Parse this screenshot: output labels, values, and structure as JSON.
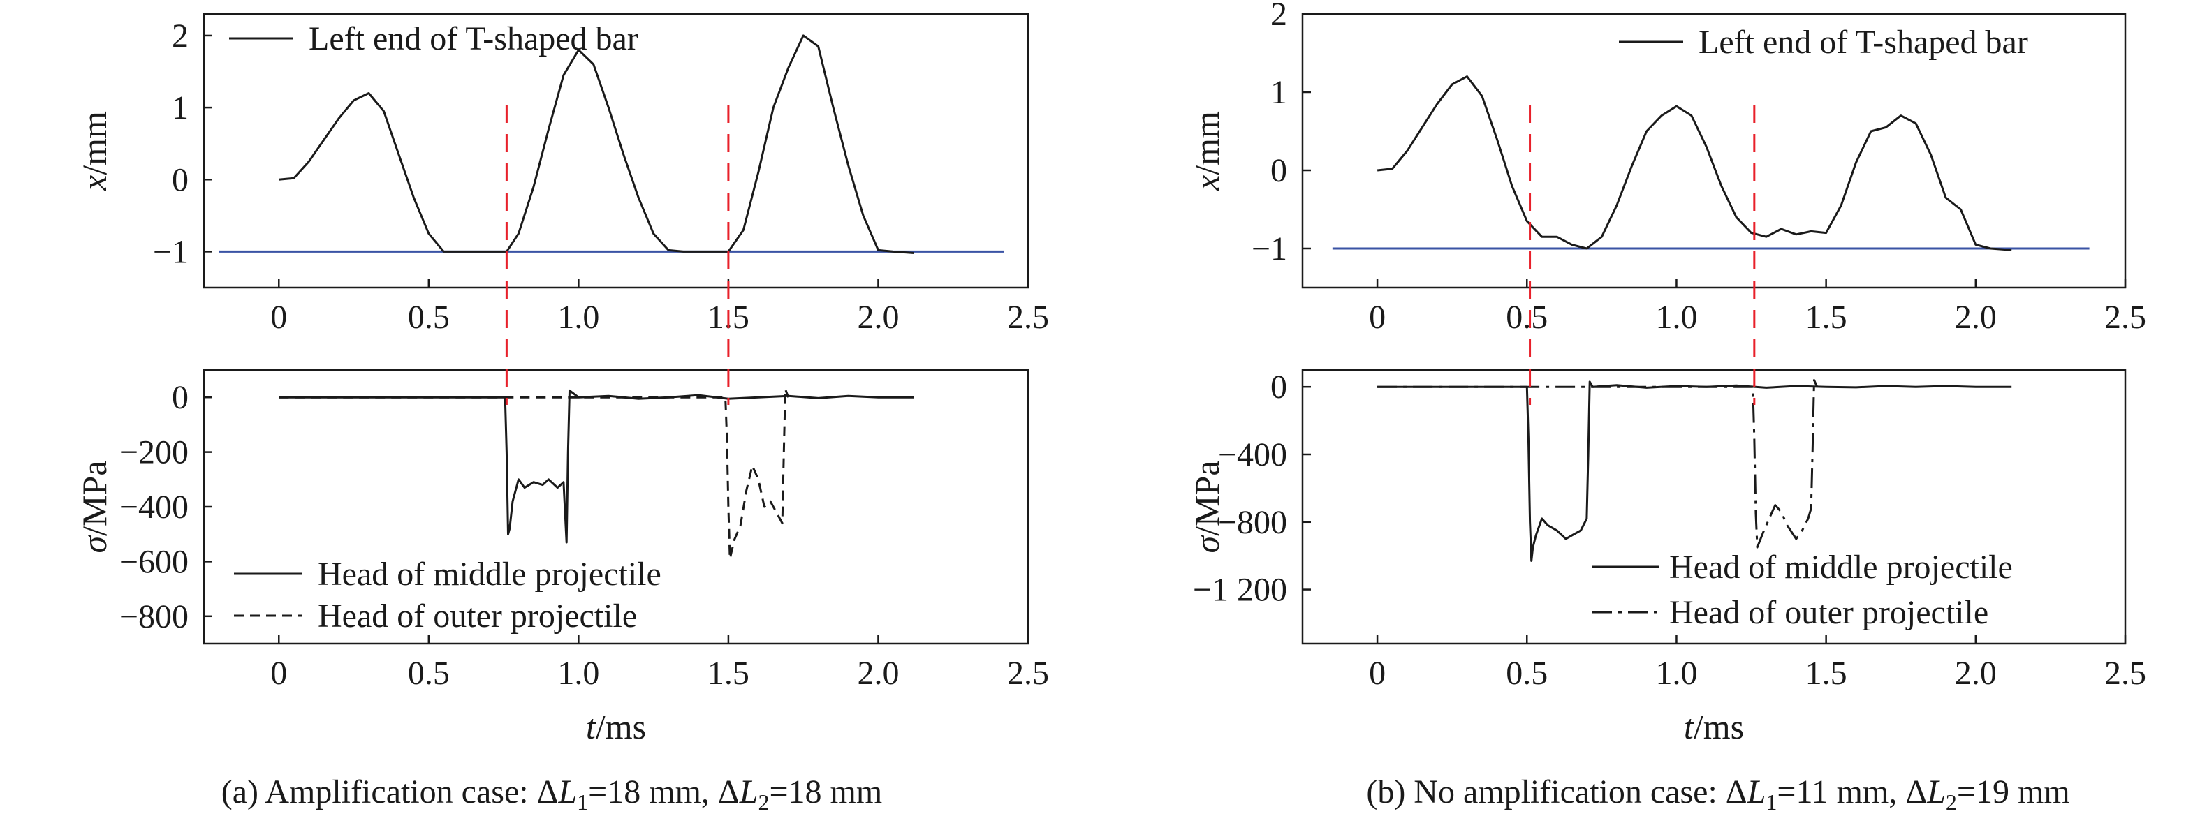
{
  "chart_data": [
    {
      "panel": "a",
      "caption": "(a) Amplification case: ΔL1=18 mm, ΔL2=18 mm",
      "caption_parts": {
        "lead": "(a) Amplification case: Δ",
        "v1": "L",
        "s1": "1",
        "m1": "=18 mm, Δ",
        "v2": "L",
        "s2": "2",
        "m2": "=18 mm"
      },
      "xlabel": "t/ms",
      "xlim": [
        -0.25,
        2.5
      ],
      "xticks": [
        0,
        0.5,
        1.0,
        1.5,
        2.0,
        2.5
      ],
      "xtick_labels": [
        "0",
        "0.5",
        "1.0",
        "1.5",
        "2.0",
        "2.5"
      ],
      "dashed_red_lines_x": [
        0.76,
        1.5
      ],
      "line_color_red": "#e8202a",
      "top": {
        "type": "line",
        "ylabel": "x/mm",
        "ylim": [
          -1.5,
          2.3
        ],
        "yticks": [
          -1,
          0,
          1,
          2
        ],
        "ytick_labels": [
          "−1",
          "0",
          "1",
          "2"
        ],
        "legend": [
          "Left end of T-shaped bar"
        ],
        "legend_position": "top-left",
        "reference_line": {
          "y": -1,
          "x": [
            -0.2,
            2.42
          ],
          "color": "#3a53a4"
        },
        "series": [
          {
            "name": "Left end of T-shaped bar",
            "style": "solid",
            "x": [
              0,
              0.05,
              0.1,
              0.15,
              0.2,
              0.25,
              0.3,
              0.35,
              0.4,
              0.45,
              0.5,
              0.55,
              0.6,
              0.65,
              0.7,
              0.76,
              0.8,
              0.85,
              0.9,
              0.95,
              1.0,
              1.05,
              1.1,
              1.15,
              1.2,
              1.25,
              1.3,
              1.35,
              1.4,
              1.45,
              1.5,
              1.55,
              1.6,
              1.65,
              1.7,
              1.75,
              1.8,
              1.85,
              1.9,
              1.95,
              2.0,
              2.05,
              2.12
            ],
            "y": [
              0,
              0.02,
              0.25,
              0.55,
              0.85,
              1.1,
              1.2,
              0.95,
              0.35,
              -0.25,
              -0.75,
              -1.0,
              -1.0,
              -1.0,
              -1.0,
              -1.0,
              -0.75,
              -0.1,
              0.7,
              1.45,
              1.8,
              1.6,
              1.0,
              0.35,
              -0.25,
              -0.75,
              -0.98,
              -1.0,
              -1.0,
              -1.0,
              -1.0,
              -0.7,
              0.1,
              1.0,
              1.55,
              2.0,
              1.85,
              1.0,
              0.2,
              -0.5,
              -0.98,
              -1.0,
              -1.02
            ]
          }
        ]
      },
      "bottom": {
        "type": "line",
        "ylabel": "σ/MPa",
        "ylim": [
          -900,
          100
        ],
        "yticks": [
          0,
          -200,
          -400,
          -600,
          -800
        ],
        "ytick_labels": [
          "0",
          "−200",
          "−400",
          "−600",
          "−800"
        ],
        "legend": [
          "Head of middle projectile",
          "Head of outer projectile"
        ],
        "legend_position": "bottom-left",
        "series": [
          {
            "name": "Head of middle projectile",
            "style": "solid",
            "x": [
              0,
              0.74,
              0.755,
              0.76,
              0.765,
              0.77,
              0.78,
              0.8,
              0.82,
              0.85,
              0.88,
              0.9,
              0.93,
              0.95,
              0.96,
              0.965,
              0.97,
              1.0,
              1.1,
              1.2,
              1.3,
              1.4,
              1.5,
              1.6,
              1.7,
              1.8,
              1.9,
              2.0,
              2.12
            ],
            "y": [
              0,
              0,
              0,
              -200,
              -500,
              -480,
              -380,
              -300,
              -330,
              -310,
              -320,
              -300,
              -330,
              -310,
              -530,
              -200,
              25,
              0,
              5,
              -5,
              0,
              8,
              -5,
              0,
              5,
              -3,
              5,
              0,
              0
            ]
          },
          {
            "name": "Head of outer projectile",
            "style": "dashed",
            "x": [
              0,
              1.49,
              1.495,
              1.5,
              1.505,
              1.52,
              1.54,
              1.56,
              1.58,
              1.6,
              1.62,
              1.64,
              1.66,
              1.68,
              1.685,
              1.69,
              1.7
            ],
            "y": [
              0,
              0,
              -150,
              -400,
              -590,
              -520,
              -470,
              -340,
              -250,
              -300,
              -400,
              -380,
              -420,
              -460,
              -200,
              30,
              0
            ]
          }
        ]
      }
    },
    {
      "panel": "b",
      "caption": "(b) No amplification case: ΔL1=11 mm, ΔL2=19 mm",
      "caption_parts": {
        "lead": "(b) No amplification case: Δ",
        "v1": "L",
        "s1": "1",
        "m1": "=11 mm, Δ",
        "v2": "L",
        "s2": "2",
        "m2": "=19 mm"
      },
      "xlabel": "t/ms",
      "xlim": [
        -0.25,
        2.5
      ],
      "xticks": [
        0,
        0.5,
        1.0,
        1.5,
        2.0,
        2.5
      ],
      "xtick_labels": [
        "0",
        "0.5",
        "1.0",
        "1.5",
        "2.0",
        "2.5"
      ],
      "dashed_red_lines_x": [
        0.51,
        1.26
      ],
      "line_color_red": "#e8202a",
      "top": {
        "type": "line",
        "ylabel": "x/mm",
        "ylim": [
          -1.5,
          2.0
        ],
        "yticks": [
          -1,
          0,
          1,
          2
        ],
        "ytick_labels": [
          "−1",
          "0",
          "1",
          "2"
        ],
        "legend": [
          "Left end of T-shaped bar"
        ],
        "legend_position": "top-right",
        "reference_line": {
          "y": -1,
          "x": [
            -0.15,
            2.38
          ],
          "color": "#3a53a4"
        },
        "series": [
          {
            "name": "Left end of T-shaped bar",
            "style": "solid",
            "x": [
              0,
              0.05,
              0.1,
              0.15,
              0.2,
              0.25,
              0.3,
              0.35,
              0.4,
              0.45,
              0.5,
              0.55,
              0.6,
              0.65,
              0.7,
              0.75,
              0.8,
              0.85,
              0.9,
              0.95,
              1.0,
              1.05,
              1.1,
              1.15,
              1.2,
              1.25,
              1.3,
              1.35,
              1.4,
              1.45,
              1.5,
              1.55,
              1.6,
              1.65,
              1.7,
              1.75,
              1.8,
              1.85,
              1.9,
              1.95,
              2.0,
              2.05,
              2.12
            ],
            "y": [
              0,
              0.02,
              0.25,
              0.55,
              0.85,
              1.1,
              1.2,
              0.95,
              0.4,
              -0.2,
              -0.65,
              -0.85,
              -0.85,
              -0.95,
              -1.0,
              -0.85,
              -0.45,
              0.05,
              0.5,
              0.7,
              0.82,
              0.7,
              0.3,
              -0.2,
              -0.6,
              -0.8,
              -0.85,
              -0.75,
              -0.82,
              -0.78,
              -0.8,
              -0.45,
              0.1,
              0.5,
              0.55,
              0.7,
              0.6,
              0.2,
              -0.35,
              -0.5,
              -0.95,
              -1.0,
              -1.02
            ]
          }
        ]
      },
      "bottom": {
        "type": "line",
        "ylabel": "σ/MPa",
        "ylim": [
          -1520,
          100
        ],
        "yticks": [
          0,
          -400,
          -800,
          -1200
        ],
        "ytick_labels": [
          "0",
          "−400",
          "−800",
          "−1 200"
        ],
        "legend": [
          "Head of middle projectile",
          "Head of outer projectile"
        ],
        "legend_position": "bottom-center",
        "series": [
          {
            "name": "Head of middle projectile",
            "style": "solid",
            "x": [
              0,
              0.5,
              0.505,
              0.51,
              0.515,
              0.52,
              0.53,
              0.55,
              0.57,
              0.6,
              0.63,
              0.65,
              0.68,
              0.7,
              0.705,
              0.71,
              0.72,
              0.8,
              0.9,
              1.0,
              1.1,
              1.2,
              1.3,
              1.4,
              1.5,
              1.6,
              1.7,
              1.8,
              1.9,
              2.0,
              2.12
            ],
            "y": [
              0,
              0,
              -300,
              -800,
              -1030,
              -950,
              -880,
              -780,
              -820,
              -850,
              -900,
              -880,
              -850,
              -780,
              -400,
              30,
              0,
              10,
              -5,
              5,
              0,
              8,
              -5,
              5,
              0,
              -3,
              5,
              0,
              5,
              0,
              0
            ]
          },
          {
            "name": "Head of outer projectile",
            "style": "dashdot",
            "x": [
              0,
              1.255,
              1.26,
              1.265,
              1.27,
              1.29,
              1.31,
              1.33,
              1.35,
              1.37,
              1.4,
              1.42,
              1.44,
              1.45,
              1.455,
              1.46,
              1.47
            ],
            "y": [
              0,
              0,
              -300,
              -750,
              -950,
              -860,
              -780,
              -700,
              -740,
              -820,
              -900,
              -850,
              -780,
              -720,
              -350,
              40,
              0
            ]
          }
        ]
      }
    }
  ]
}
